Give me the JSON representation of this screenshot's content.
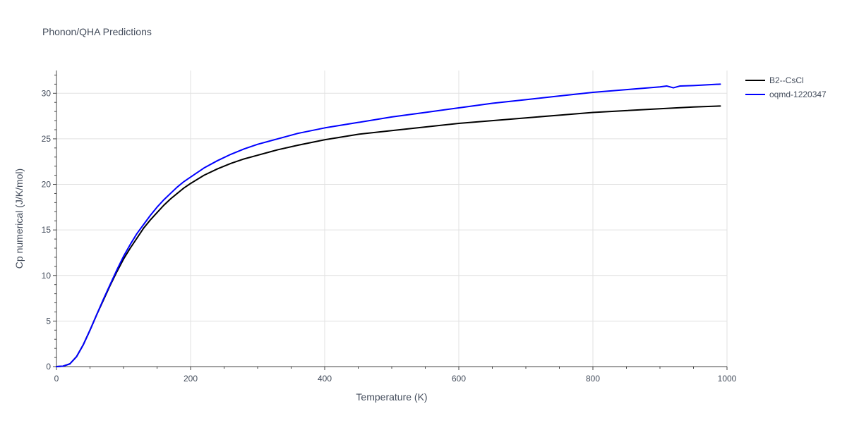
{
  "chart_data": {
    "type": "line",
    "title": "Phonon/QHA Predictions",
    "xlabel": "Temperature (K)",
    "ylabel": "Cp numerical (J/K/mol)",
    "xlim": [
      0,
      1000
    ],
    "ylim": [
      0,
      32.5
    ],
    "x_ticks": [
      0,
      200,
      400,
      600,
      800,
      1000
    ],
    "y_ticks": [
      0,
      5,
      10,
      15,
      20,
      25,
      30
    ],
    "x_tick_labels": [
      "0",
      "200",
      "400",
      "600",
      "800",
      "1000"
    ],
    "y_tick_labels": [
      "0",
      "5",
      "10",
      "15",
      "20",
      "25",
      "30"
    ],
    "grid": true,
    "legend_position": "top-right",
    "series": [
      {
        "name": "B2--CsCl",
        "color": "#000000",
        "x": [
          0,
          10,
          20,
          30,
          40,
          50,
          60,
          70,
          80,
          90,
          100,
          110,
          120,
          130,
          140,
          150,
          160,
          170,
          180,
          190,
          200,
          220,
          240,
          260,
          280,
          300,
          330,
          360,
          400,
          450,
          500,
          550,
          600,
          650,
          700,
          750,
          800,
          850,
          900,
          950,
          990
        ],
        "y": [
          0,
          0.05,
          0.3,
          1.1,
          2.4,
          4.0,
          5.7,
          7.3,
          8.9,
          10.4,
          11.8,
          13.0,
          14.1,
          15.2,
          16.1,
          16.9,
          17.7,
          18.4,
          19.0,
          19.6,
          20.1,
          21.0,
          21.7,
          22.3,
          22.8,
          23.2,
          23.8,
          24.3,
          24.9,
          25.5,
          25.9,
          26.3,
          26.7,
          27.0,
          27.3,
          27.6,
          27.9,
          28.1,
          28.3,
          28.5,
          28.6
        ]
      },
      {
        "name": "oqmd-1220347",
        "color": "#0000ff",
        "x": [
          0,
          10,
          20,
          30,
          40,
          50,
          60,
          70,
          80,
          90,
          100,
          110,
          120,
          130,
          140,
          150,
          160,
          170,
          180,
          190,
          200,
          220,
          240,
          260,
          280,
          300,
          330,
          360,
          400,
          450,
          500,
          550,
          600,
          650,
          700,
          750,
          800,
          850,
          900,
          910,
          920,
          930,
          950,
          990
        ],
        "y": [
          0,
          0.05,
          0.3,
          1.1,
          2.4,
          4.0,
          5.7,
          7.4,
          9.0,
          10.6,
          12.1,
          13.4,
          14.6,
          15.6,
          16.6,
          17.5,
          18.3,
          19.0,
          19.7,
          20.3,
          20.8,
          21.8,
          22.6,
          23.3,
          23.9,
          24.4,
          25.0,
          25.6,
          26.2,
          26.8,
          27.4,
          27.9,
          28.4,
          28.9,
          29.3,
          29.7,
          30.1,
          30.4,
          30.7,
          30.8,
          30.6,
          30.8,
          30.85,
          31.0
        ]
      }
    ]
  }
}
